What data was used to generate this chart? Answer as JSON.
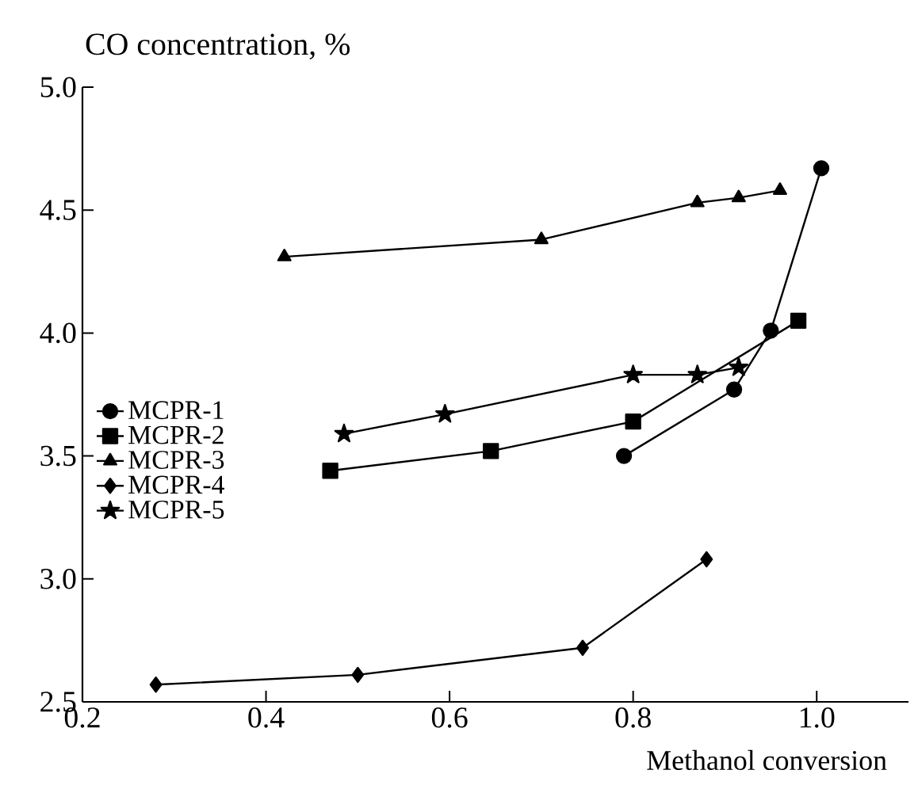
{
  "chart_data": {
    "type": "line",
    "xlabel": "Methanol conversion",
    "ylabel": "CO concentration, %",
    "xlim": [
      0.2,
      1.1
    ],
    "ylim": [
      2.5,
      5.0
    ],
    "xticks": [
      {
        "value": 0.2,
        "label": "0.2"
      },
      {
        "value": 0.4,
        "label": "0.4"
      },
      {
        "value": 0.6,
        "label": "0.6"
      },
      {
        "value": 0.8,
        "label": "0.8"
      },
      {
        "value": 1.0,
        "label": "1.0"
      }
    ],
    "yticks": [
      {
        "value": 2.5,
        "label": "2.5"
      },
      {
        "value": 3.0,
        "label": "3.0"
      },
      {
        "value": 3.5,
        "label": "3.5"
      },
      {
        "value": 4.0,
        "label": "4.0"
      },
      {
        "value": 4.5,
        "label": "4.5"
      },
      {
        "value": 5.0,
        "label": "5.0"
      }
    ],
    "grid": false,
    "legend": "left",
    "line_style": "solid",
    "series": [
      {
        "name": "MCPR-1",
        "color": "#000000",
        "marker": "circle",
        "x": [
          0.79,
          0.91,
          0.95,
          1.005
        ],
        "values": [
          3.5,
          3.77,
          4.01,
          4.67
        ]
      },
      {
        "name": "MCPR-2",
        "color": "#000000",
        "marker": "square",
        "x": [
          0.47,
          0.645,
          0.8,
          0.98
        ],
        "values": [
          3.44,
          3.52,
          3.64,
          4.05
        ]
      },
      {
        "name": "MCPR-3",
        "color": "#000000",
        "marker": "triangle",
        "x": [
          0.42,
          0.7,
          0.87,
          0.915,
          0.96
        ],
        "values": [
          4.31,
          4.38,
          4.53,
          4.55,
          4.58
        ]
      },
      {
        "name": "MCPR-4",
        "color": "#000000",
        "marker": "diamond",
        "x": [
          0.28,
          0.5,
          0.745,
          0.88
        ],
        "values": [
          2.57,
          2.61,
          2.72,
          3.08
        ]
      },
      {
        "name": "MCPR-5",
        "color": "#000000",
        "marker": "star",
        "x": [
          0.485,
          0.595,
          0.8,
          0.87,
          0.915
        ],
        "values": [
          3.59,
          3.67,
          3.83,
          3.83,
          3.86
        ]
      }
    ]
  }
}
